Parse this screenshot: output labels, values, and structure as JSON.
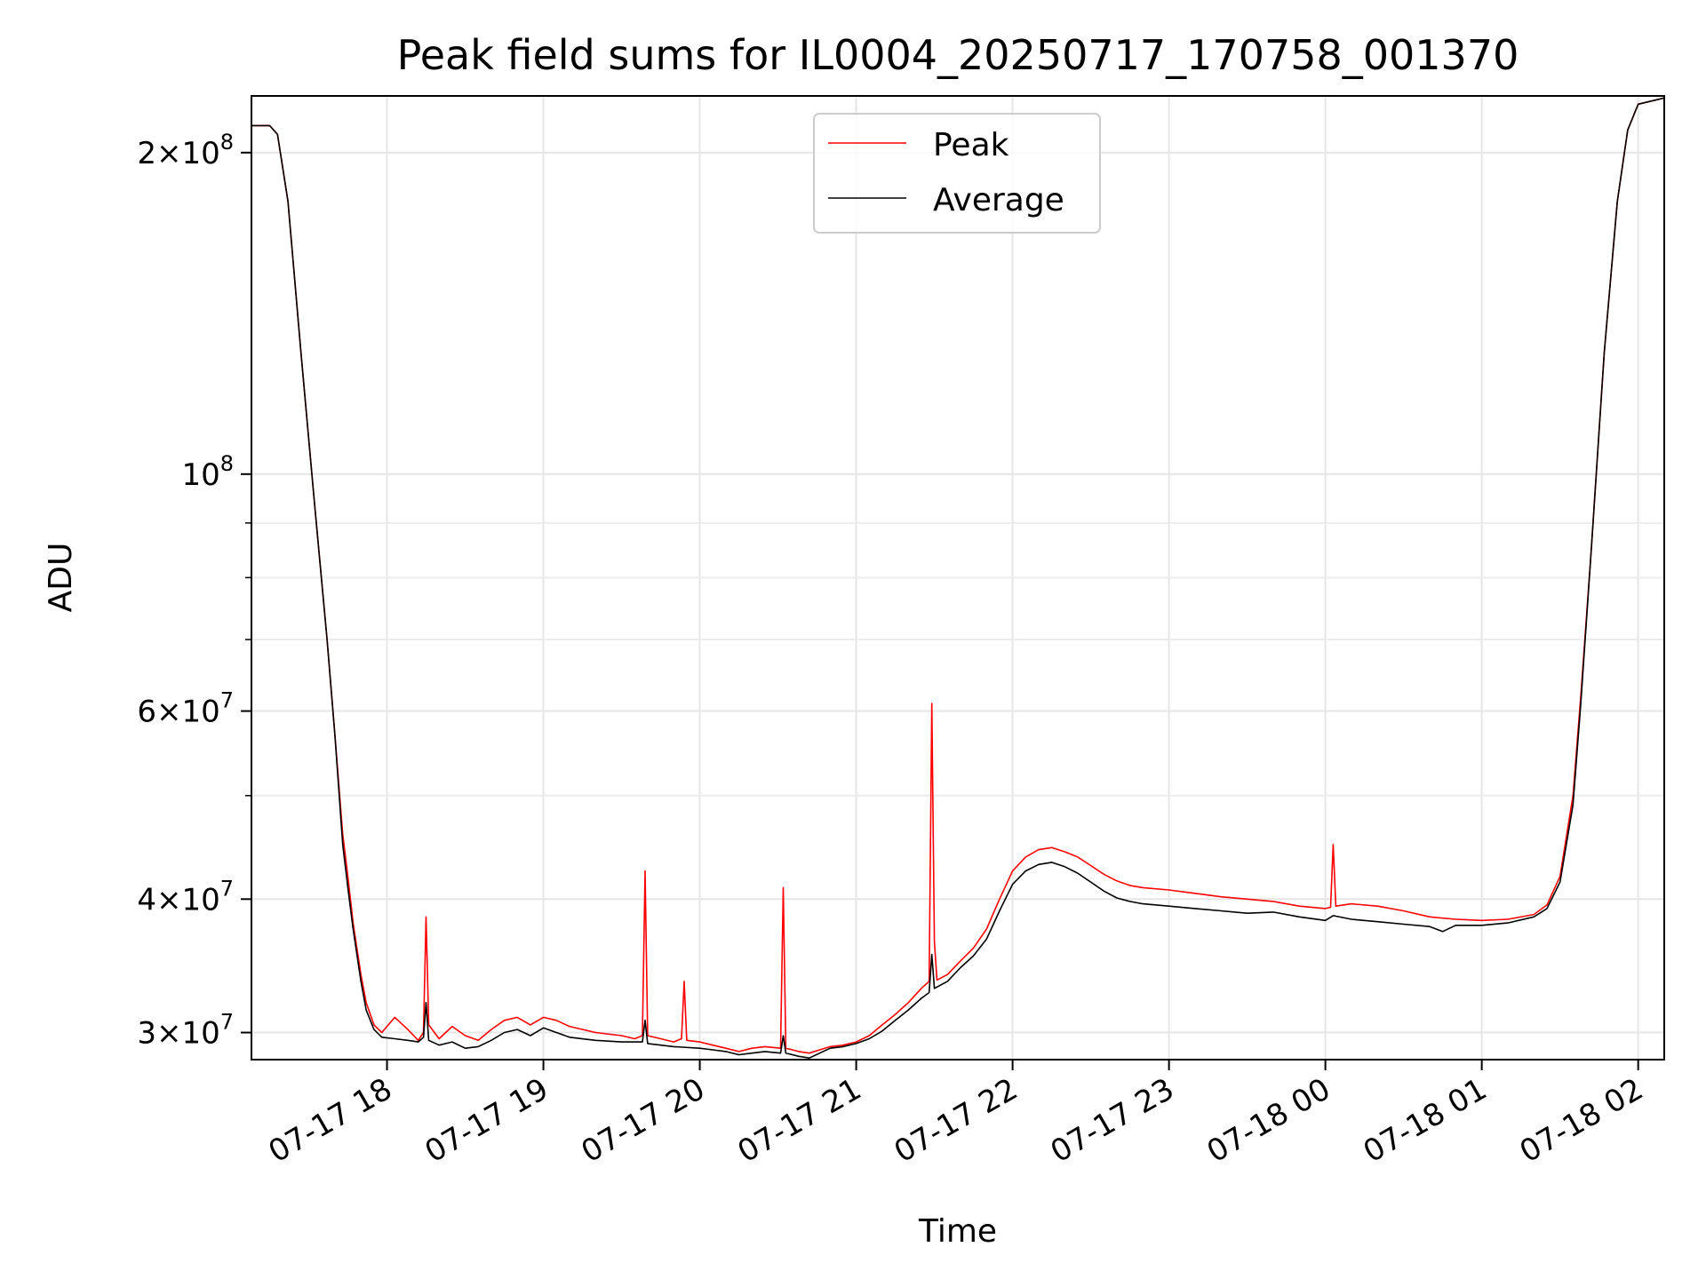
{
  "chart_data": {
    "type": "line",
    "title": "Peak field sums for IL0004_20250717_170758_001370",
    "xlabel": "Time",
    "ylabel": "ADU",
    "yscale": "log",
    "grid": true,
    "legend_position": "top-center",
    "xlim": [
      "2025-07-17 17:08",
      "2025-07-18 02:10"
    ],
    "ylim": [
      28300000,
      226000000
    ],
    "x_ticks": [
      {
        "label": "07-17 18",
        "t": "2025-07-17 18:00"
      },
      {
        "label": "07-17 19",
        "t": "2025-07-17 19:00"
      },
      {
        "label": "07-17 20",
        "t": "2025-07-17 20:00"
      },
      {
        "label": "07-17 21",
        "t": "2025-07-17 21:00"
      },
      {
        "label": "07-17 22",
        "t": "2025-07-17 22:00"
      },
      {
        "label": "07-17 23",
        "t": "2025-07-17 23:00"
      },
      {
        "label": "07-18 00",
        "t": "2025-07-18 00:00"
      },
      {
        "label": "07-18 01",
        "t": "2025-07-18 01:00"
      },
      {
        "label": "07-18 02",
        "t": "2025-07-18 02:00"
      }
    ],
    "y_ticks": [
      {
        "value": 30000000,
        "base": "3",
        "exp": "7"
      },
      {
        "value": 40000000,
        "base": "4",
        "exp": "7"
      },
      {
        "value": 60000000,
        "base": "6",
        "exp": "7"
      },
      {
        "value": 100000000,
        "base": "",
        "exp": "8"
      },
      {
        "value": 200000000,
        "base": "2",
        "exp": "8"
      }
    ],
    "y_minor_ticks": [
      50000000,
      70000000,
      80000000,
      90000000
    ],
    "series": [
      {
        "name": "Peak",
        "color": "#ff0000",
        "points": [
          [
            "2025-07-17 17:08",
            212000000
          ],
          [
            "2025-07-17 17:15",
            212000000
          ],
          [
            "2025-07-17 17:18",
            208000000
          ],
          [
            "2025-07-17 17:22",
            180000000
          ],
          [
            "2025-07-17 17:27",
            130000000
          ],
          [
            "2025-07-17 17:32",
            95000000
          ],
          [
            "2025-07-17 17:37",
            70000000
          ],
          [
            "2025-07-17 17:40",
            57000000
          ],
          [
            "2025-07-17 17:43",
            46000000
          ],
          [
            "2025-07-17 17:44",
            44000000
          ],
          [
            "2025-07-17 17:45",
            42000000
          ],
          [
            "2025-07-17 17:47",
            38000000
          ],
          [
            "2025-07-17 17:50",
            34000000
          ],
          [
            "2025-07-17 17:52",
            32000000
          ],
          [
            "2025-07-17 17:55",
            30500000
          ],
          [
            "2025-07-17 17:58",
            30000000
          ],
          [
            "2025-07-17 18:03",
            31000000
          ],
          [
            "2025-07-17 18:08",
            30200000
          ],
          [
            "2025-07-17 18:12",
            29500000
          ],
          [
            "2025-07-17 18:14",
            30000000
          ],
          [
            "2025-07-17 18:15",
            38500000
          ],
          [
            "2025-07-17 18:16",
            30500000
          ],
          [
            "2025-07-17 18:20",
            29600000
          ],
          [
            "2025-07-17 18:25",
            30400000
          ],
          [
            "2025-07-17 18:30",
            29800000
          ],
          [
            "2025-07-17 18:35",
            29500000
          ],
          [
            "2025-07-17 18:40",
            30200000
          ],
          [
            "2025-07-17 18:45",
            30800000
          ],
          [
            "2025-07-17 18:50",
            31000000
          ],
          [
            "2025-07-17 18:55",
            30500000
          ],
          [
            "2025-07-17 19:00",
            31000000
          ],
          [
            "2025-07-17 19:05",
            30800000
          ],
          [
            "2025-07-17 19:10",
            30400000
          ],
          [
            "2025-07-17 19:20",
            30000000
          ],
          [
            "2025-07-17 19:30",
            29800000
          ],
          [
            "2025-07-17 19:35",
            29600000
          ],
          [
            "2025-07-17 19:38",
            29800000
          ],
          [
            "2025-07-17 19:39",
            42500000
          ],
          [
            "2025-07-17 19:40",
            29800000
          ],
          [
            "2025-07-17 19:45",
            29600000
          ],
          [
            "2025-07-17 19:50",
            29400000
          ],
          [
            "2025-07-17 19:53",
            29600000
          ],
          [
            "2025-07-17 19:54",
            33500000
          ],
          [
            "2025-07-17 19:55",
            29500000
          ],
          [
            "2025-07-17 20:00",
            29400000
          ],
          [
            "2025-07-17 20:05",
            29200000
          ],
          [
            "2025-07-17 20:10",
            29000000
          ],
          [
            "2025-07-17 20:15",
            28800000
          ],
          [
            "2025-07-17 20:20",
            29000000
          ],
          [
            "2025-07-17 20:25",
            29100000
          ],
          [
            "2025-07-17 20:31",
            29000000
          ],
          [
            "2025-07-17 20:32",
            41000000
          ],
          [
            "2025-07-17 20:33",
            29000000
          ],
          [
            "2025-07-17 20:38",
            28800000
          ],
          [
            "2025-07-17 20:42",
            28700000
          ],
          [
            "2025-07-17 20:46",
            28900000
          ],
          [
            "2025-07-17 20:50",
            29100000
          ],
          [
            "2025-07-17 20:55",
            29200000
          ],
          [
            "2025-07-17 21:00",
            29400000
          ],
          [
            "2025-07-17 21:05",
            29800000
          ],
          [
            "2025-07-17 21:10",
            30500000
          ],
          [
            "2025-07-17 21:15",
            31200000
          ],
          [
            "2025-07-17 21:20",
            32000000
          ],
          [
            "2025-07-17 21:25",
            33000000
          ],
          [
            "2025-07-17 21:28",
            33500000
          ],
          [
            "2025-07-17 21:29",
            61000000
          ],
          [
            "2025-07-17 21:30",
            36500000
          ],
          [
            "2025-07-17 21:31",
            33600000
          ],
          [
            "2025-07-17 21:35",
            34000000
          ],
          [
            "2025-07-17 21:40",
            35000000
          ],
          [
            "2025-07-17 21:45",
            36000000
          ],
          [
            "2025-07-17 21:50",
            37500000
          ],
          [
            "2025-07-17 21:55",
            40000000
          ],
          [
            "2025-07-17 22:00",
            42500000
          ],
          [
            "2025-07-17 22:05",
            43800000
          ],
          [
            "2025-07-17 22:10",
            44500000
          ],
          [
            "2025-07-17 22:15",
            44700000
          ],
          [
            "2025-07-17 22:20",
            44300000
          ],
          [
            "2025-07-17 22:25",
            43800000
          ],
          [
            "2025-07-17 22:30",
            43000000
          ],
          [
            "2025-07-17 22:35",
            42200000
          ],
          [
            "2025-07-17 22:40",
            41600000
          ],
          [
            "2025-07-17 22:45",
            41200000
          ],
          [
            "2025-07-17 22:50",
            41000000
          ],
          [
            "2025-07-17 23:00",
            40800000
          ],
          [
            "2025-07-17 23:10",
            40500000
          ],
          [
            "2025-07-17 23:20",
            40200000
          ],
          [
            "2025-07-17 23:30",
            40000000
          ],
          [
            "2025-07-17 23:40",
            39800000
          ],
          [
            "2025-07-17 23:50",
            39400000
          ],
          [
            "2025-07-18 00:00",
            39200000
          ],
          [
            "2025-07-18 00:02",
            39300000
          ],
          [
            "2025-07-18 00:03",
            45000000
          ],
          [
            "2025-07-18 00:04",
            39400000
          ],
          [
            "2025-07-18 00:10",
            39600000
          ],
          [
            "2025-07-18 00:20",
            39400000
          ],
          [
            "2025-07-18 00:30",
            39000000
          ],
          [
            "2025-07-18 00:40",
            38500000
          ],
          [
            "2025-07-18 00:50",
            38300000
          ],
          [
            "2025-07-18 01:00",
            38200000
          ],
          [
            "2025-07-18 01:10",
            38300000
          ],
          [
            "2025-07-18 01:20",
            38700000
          ],
          [
            "2025-07-18 01:25",
            39500000
          ],
          [
            "2025-07-18 01:30",
            42000000
          ],
          [
            "2025-07-18 01:35",
            50000000
          ],
          [
            "2025-07-18 01:38",
            62000000
          ],
          [
            "2025-07-18 01:42",
            85000000
          ],
          [
            "2025-07-18 01:47",
            130000000
          ],
          [
            "2025-07-18 01:52",
            180000000
          ],
          [
            "2025-07-18 01:56",
            210000000
          ],
          [
            "2025-07-18 02:00",
            222000000
          ],
          [
            "2025-07-18 02:10",
            225000000
          ]
        ]
      },
      {
        "name": "Average",
        "color": "#000000",
        "points": [
          [
            "2025-07-17 17:08",
            212000000
          ],
          [
            "2025-07-17 17:15",
            212000000
          ],
          [
            "2025-07-17 17:18",
            208000000
          ],
          [
            "2025-07-17 17:22",
            180000000
          ],
          [
            "2025-07-17 17:27",
            130000000
          ],
          [
            "2025-07-17 17:32",
            95000000
          ],
          [
            "2025-07-17 17:37",
            70000000
          ],
          [
            "2025-07-17 17:40",
            57000000
          ],
          [
            "2025-07-17 17:43",
            45000000
          ],
          [
            "2025-07-17 17:45",
            41000000
          ],
          [
            "2025-07-17 17:47",
            37500000
          ],
          [
            "2025-07-17 17:50",
            33500000
          ],
          [
            "2025-07-17 17:52",
            31500000
          ],
          [
            "2025-07-17 17:55",
            30200000
          ],
          [
            "2025-07-17 17:58",
            29700000
          ],
          [
            "2025-07-17 18:03",
            29600000
          ],
          [
            "2025-07-17 18:08",
            29500000
          ],
          [
            "2025-07-17 18:12",
            29400000
          ],
          [
            "2025-07-17 18:14",
            29700000
          ],
          [
            "2025-07-17 18:15",
            32000000
          ],
          [
            "2025-07-17 18:16",
            29500000
          ],
          [
            "2025-07-17 18:20",
            29200000
          ],
          [
            "2025-07-17 18:25",
            29400000
          ],
          [
            "2025-07-17 18:30",
            29000000
          ],
          [
            "2025-07-17 18:35",
            29100000
          ],
          [
            "2025-07-17 18:40",
            29500000
          ],
          [
            "2025-07-17 18:45",
            30000000
          ],
          [
            "2025-07-17 18:50",
            30200000
          ],
          [
            "2025-07-17 18:55",
            29800000
          ],
          [
            "2025-07-17 19:00",
            30300000
          ],
          [
            "2025-07-17 19:05",
            30000000
          ],
          [
            "2025-07-17 19:10",
            29700000
          ],
          [
            "2025-07-17 19:20",
            29500000
          ],
          [
            "2025-07-17 19:30",
            29400000
          ],
          [
            "2025-07-17 19:38",
            29400000
          ],
          [
            "2025-07-17 19:39",
            30800000
          ],
          [
            "2025-07-17 19:40",
            29300000
          ],
          [
            "2025-07-17 19:50",
            29100000
          ],
          [
            "2025-07-17 20:00",
            29000000
          ],
          [
            "2025-07-17 20:05",
            28900000
          ],
          [
            "2025-07-17 20:10",
            28800000
          ],
          [
            "2025-07-17 20:15",
            28600000
          ],
          [
            "2025-07-17 20:20",
            28700000
          ],
          [
            "2025-07-17 20:25",
            28800000
          ],
          [
            "2025-07-17 20:31",
            28700000
          ],
          [
            "2025-07-17 20:32",
            29800000
          ],
          [
            "2025-07-17 20:33",
            28700000
          ],
          [
            "2025-07-17 20:38",
            28500000
          ],
          [
            "2025-07-17 20:42",
            28400000
          ],
          [
            "2025-07-17 20:46",
            28700000
          ],
          [
            "2025-07-17 20:50",
            29000000
          ],
          [
            "2025-07-17 20:55",
            29100000
          ],
          [
            "2025-07-17 21:00",
            29300000
          ],
          [
            "2025-07-17 21:05",
            29600000
          ],
          [
            "2025-07-17 21:10",
            30100000
          ],
          [
            "2025-07-17 21:15",
            30800000
          ],
          [
            "2025-07-17 21:20",
            31500000
          ],
          [
            "2025-07-17 21:25",
            32300000
          ],
          [
            "2025-07-17 21:28",
            32700000
          ],
          [
            "2025-07-17 21:29",
            35500000
          ],
          [
            "2025-07-17 21:30",
            33000000
          ],
          [
            "2025-07-17 21:35",
            33500000
          ],
          [
            "2025-07-17 21:40",
            34500000
          ],
          [
            "2025-07-17 21:45",
            35400000
          ],
          [
            "2025-07-17 21:50",
            36700000
          ],
          [
            "2025-07-17 21:55",
            39000000
          ],
          [
            "2025-07-17 22:00",
            41300000
          ],
          [
            "2025-07-17 22:05",
            42500000
          ],
          [
            "2025-07-17 22:10",
            43100000
          ],
          [
            "2025-07-17 22:15",
            43300000
          ],
          [
            "2025-07-17 22:20",
            42900000
          ],
          [
            "2025-07-17 22:25",
            42300000
          ],
          [
            "2025-07-17 22:30",
            41500000
          ],
          [
            "2025-07-17 22:35",
            40700000
          ],
          [
            "2025-07-17 22:40",
            40100000
          ],
          [
            "2025-07-17 22:45",
            39800000
          ],
          [
            "2025-07-17 22:50",
            39600000
          ],
          [
            "2025-07-17 23:00",
            39400000
          ],
          [
            "2025-07-17 23:10",
            39200000
          ],
          [
            "2025-07-17 23:20",
            39000000
          ],
          [
            "2025-07-17 23:30",
            38800000
          ],
          [
            "2025-07-17 23:40",
            38900000
          ],
          [
            "2025-07-17 23:50",
            38500000
          ],
          [
            "2025-07-18 00:00",
            38200000
          ],
          [
            "2025-07-18 00:03",
            38600000
          ],
          [
            "2025-07-18 00:10",
            38300000
          ],
          [
            "2025-07-18 00:20",
            38100000
          ],
          [
            "2025-07-18 00:30",
            37900000
          ],
          [
            "2025-07-18 00:40",
            37700000
          ],
          [
            "2025-07-18 00:45",
            37300000
          ],
          [
            "2025-07-18 00:50",
            37800000
          ],
          [
            "2025-07-18 01:00",
            37800000
          ],
          [
            "2025-07-18 01:10",
            38000000
          ],
          [
            "2025-07-18 01:20",
            38500000
          ],
          [
            "2025-07-18 01:25",
            39200000
          ],
          [
            "2025-07-18 01:30",
            41500000
          ],
          [
            "2025-07-18 01:35",
            49000000
          ],
          [
            "2025-07-18 01:38",
            61000000
          ],
          [
            "2025-07-18 01:42",
            85000000
          ],
          [
            "2025-07-18 01:47",
            130000000
          ],
          [
            "2025-07-18 01:52",
            180000000
          ],
          [
            "2025-07-18 01:56",
            210000000
          ],
          [
            "2025-07-18 02:00",
            222000000
          ],
          [
            "2025-07-18 02:10",
            225000000
          ]
        ]
      }
    ]
  }
}
